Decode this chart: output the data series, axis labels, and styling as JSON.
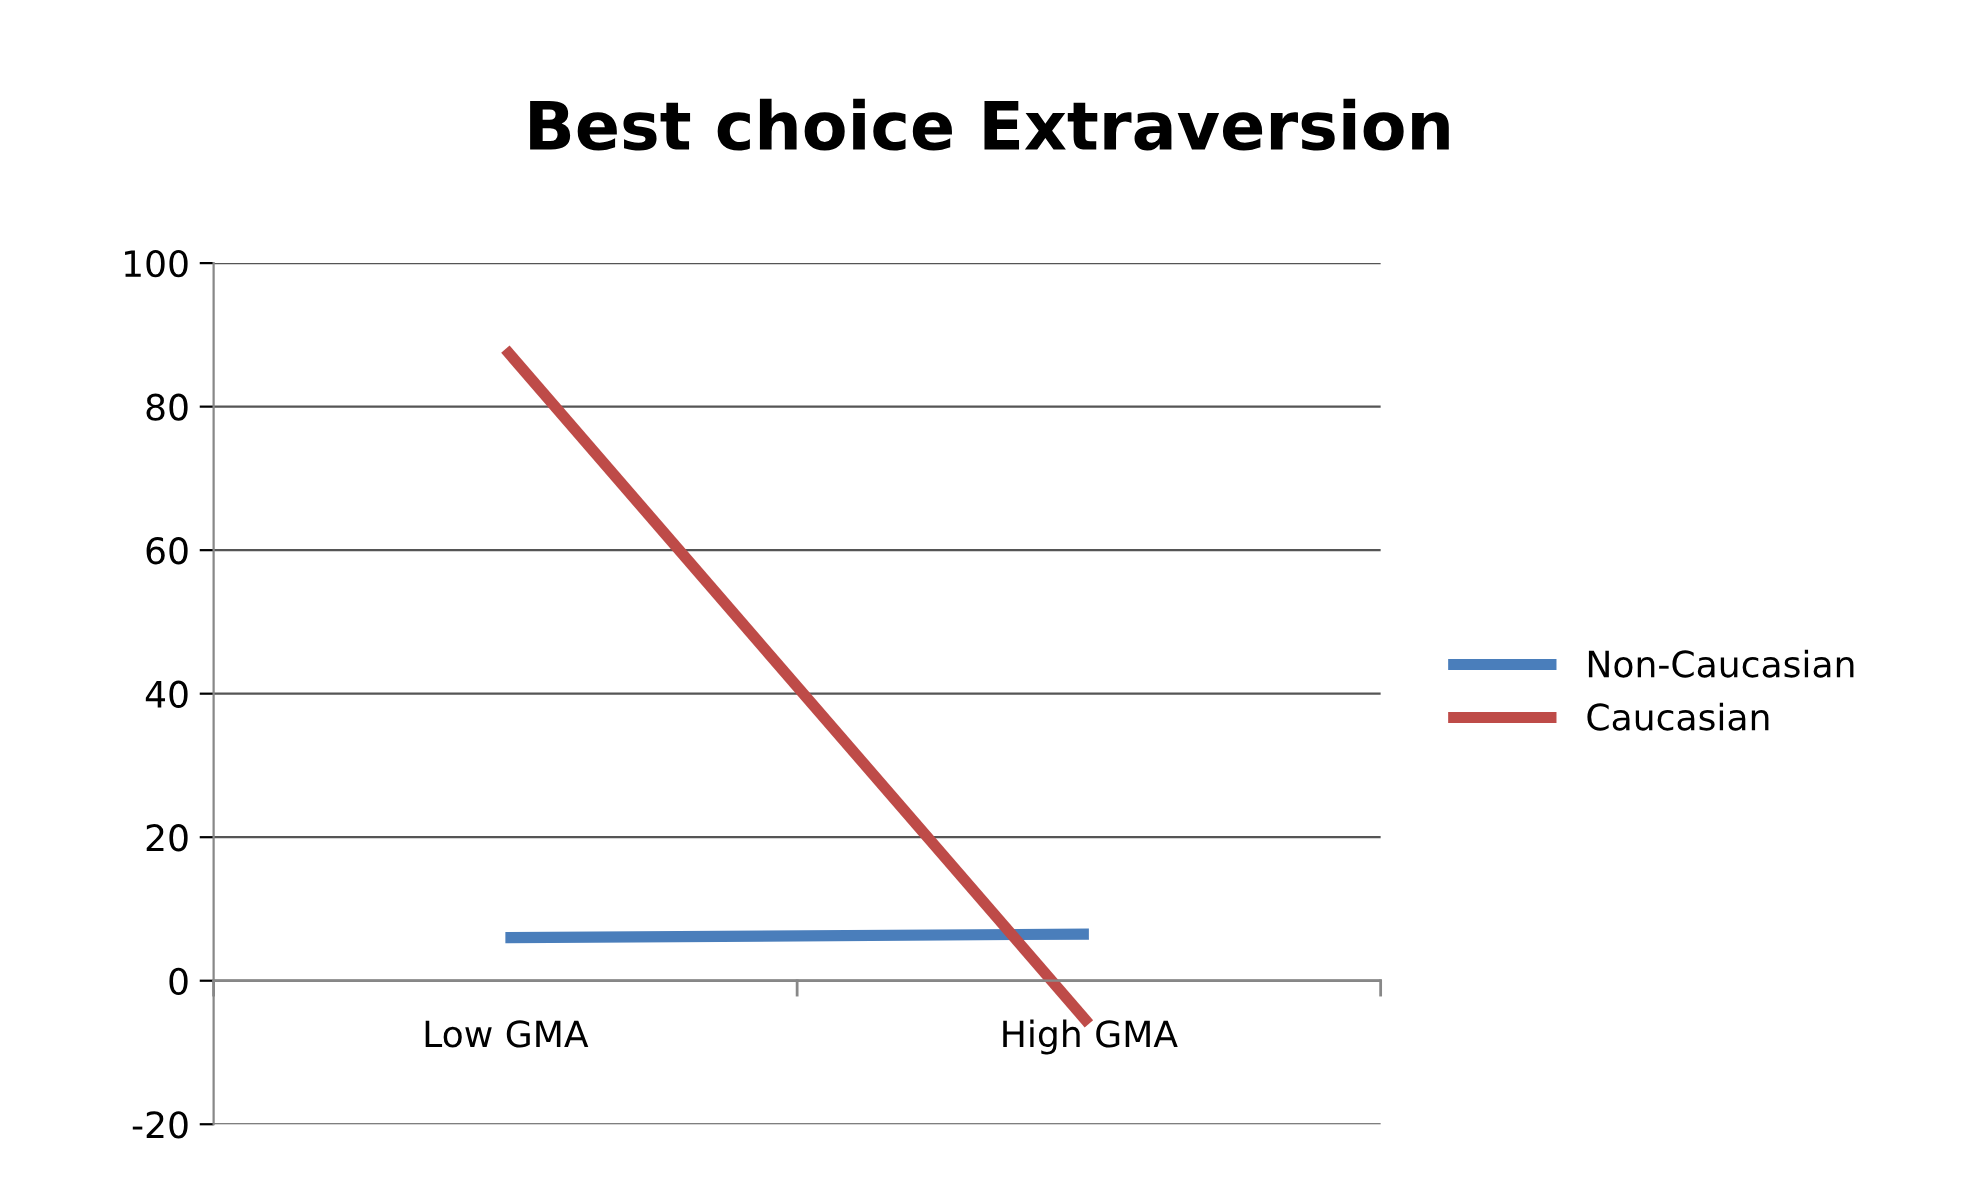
{
  "chart_data": {
    "type": "line",
    "title": "Best choice Extraversion",
    "categories": [
      "Low GMA",
      "High GMA"
    ],
    "series": [
      {
        "name": "Non-Caucasian",
        "color": "#4a7ebb",
        "values": [
          6,
          6.5
        ]
      },
      {
        "name": "Caucasian",
        "color": "#be4b48",
        "values": [
          88,
          -6
        ]
      }
    ],
    "ylim": [
      -20,
      100
    ],
    "yticks": [
      -20,
      0,
      20,
      40,
      60,
      80,
      100
    ],
    "grid": "y",
    "legend": "right",
    "marker": "none",
    "line_style": "solid"
  }
}
